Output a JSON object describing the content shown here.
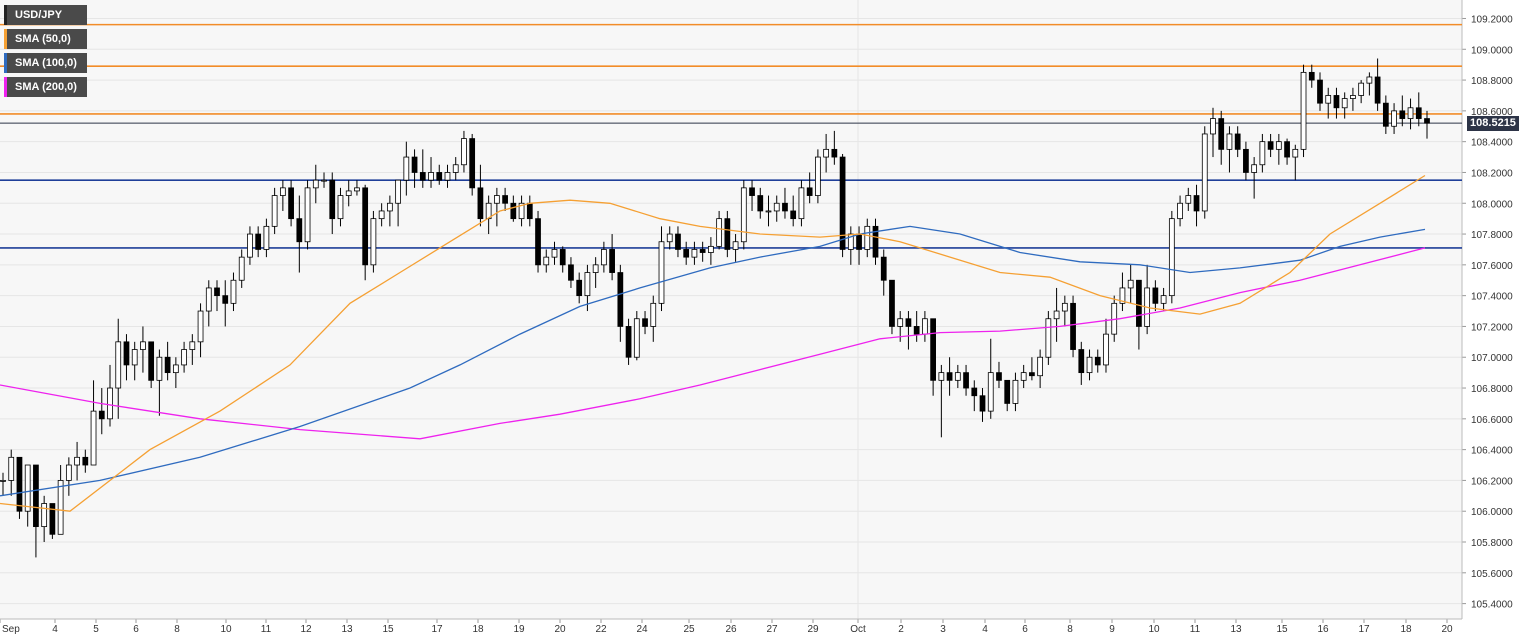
{
  "colors": {
    "background": "#f7f7f7",
    "grid": "#e6e6e6",
    "candle_up_fill": "#ffffff",
    "candle_down_fill": "#000000",
    "candle_wick": "#000000",
    "resistance": "#f28c28",
    "support": "#1f3f99",
    "price_line": "#2d3447",
    "sma50": "#f5a033",
    "sma100": "#2f6bbf",
    "sma200": "#ee22ee"
  },
  "legend": [
    {
      "label": "USD/JPY",
      "color": "#222222"
    },
    {
      "label": "SMA (50,0)",
      "color": "#f5a033"
    },
    {
      "label": "SMA (100,0)",
      "color": "#2f6bbf"
    },
    {
      "label": "SMA (200,0)",
      "color": "#ee22ee"
    }
  ],
  "last_price_label": "108.5215",
  "chart_data": {
    "type": "candlestick",
    "pair": "USD/JPY",
    "ylim": [
      105.3,
      109.32
    ],
    "y_ticks": [
      "105.4000",
      "105.6000",
      "105.8000",
      "106.0000",
      "106.2000",
      "106.4000",
      "106.6000",
      "106.8000",
      "107.0000",
      "107.2000",
      "107.4000",
      "107.6000",
      "107.8000",
      "108.0000",
      "108.2000",
      "108.4000",
      "108.6000",
      "108.8000",
      "109.0000",
      "109.2000"
    ],
    "x_ticks": [
      "Sep",
      "4",
      "5",
      "6",
      "8",
      "10",
      "11",
      "12",
      "13",
      "15",
      "17",
      "18",
      "19",
      "20",
      "22",
      "24",
      "25",
      "26",
      "27",
      "29",
      "Oct",
      "2",
      "3",
      "4",
      "6",
      "8",
      "9",
      "10",
      "11",
      "13",
      "15",
      "16",
      "17",
      "18",
      "20"
    ],
    "horizontal_levels": {
      "resistance": [
        109.16,
        108.89,
        108.58
      ],
      "support": [
        108.15,
        107.71
      ],
      "last_price": 108.52
    },
    "candles": [
      [
        106.2,
        106.25,
        106.1,
        106.2
      ],
      [
        106.2,
        106.4,
        106.1,
        106.35
      ],
      [
        106.35,
        106.35,
        105.95,
        106.0
      ],
      [
        106.0,
        106.3,
        105.9,
        106.3
      ],
      [
        106.3,
        106.3,
        105.7,
        105.9
      ],
      [
        105.9,
        106.1,
        105.8,
        106.05
      ],
      [
        106.05,
        106.05,
        105.82,
        105.85
      ],
      [
        105.85,
        106.3,
        105.85,
        106.2
      ],
      [
        106.2,
        106.35,
        106.1,
        106.3
      ],
      [
        106.3,
        106.45,
        106.2,
        106.35
      ],
      [
        106.35,
        106.4,
        106.25,
        106.3
      ],
      [
        106.3,
        106.85,
        106.3,
        106.65
      ],
      [
        106.65,
        106.8,
        106.5,
        106.6
      ],
      [
        106.6,
        106.95,
        106.55,
        106.8
      ],
      [
        106.8,
        107.25,
        106.6,
        107.1
      ],
      [
        107.1,
        107.15,
        106.85,
        106.95
      ],
      [
        106.95,
        107.1,
        106.85,
        107.05
      ],
      [
        107.05,
        107.2,
        106.9,
        107.1
      ],
      [
        107.1,
        107.1,
        106.8,
        106.85
      ],
      [
        106.85,
        107.05,
        106.62,
        107.0
      ],
      [
        107.0,
        107.1,
        106.85,
        106.9
      ],
      [
        106.9,
        107.0,
        106.8,
        106.95
      ],
      [
        106.95,
        107.1,
        106.9,
        107.05
      ],
      [
        107.05,
        107.15,
        106.95,
        107.1
      ],
      [
        107.1,
        107.35,
        107.0,
        107.3
      ],
      [
        107.3,
        107.5,
        107.2,
        107.45
      ],
      [
        107.45,
        107.5,
        107.3,
        107.4
      ],
      [
        107.4,
        107.5,
        107.2,
        107.35
      ],
      [
        107.35,
        107.55,
        107.3,
        107.5
      ],
      [
        107.5,
        107.7,
        107.45,
        107.65
      ],
      [
        107.65,
        107.85,
        107.6,
        107.8
      ],
      [
        107.8,
        107.85,
        107.65,
        107.7
      ],
      [
        107.7,
        107.9,
        107.65,
        107.85
      ],
      [
        107.85,
        108.1,
        107.8,
        108.05
      ],
      [
        108.05,
        108.15,
        107.95,
        108.1
      ],
      [
        108.1,
        108.15,
        107.85,
        107.9
      ],
      [
        107.9,
        108.05,
        107.55,
        107.75
      ],
      [
        107.75,
        108.15,
        107.7,
        108.1
      ],
      [
        108.1,
        108.25,
        108.0,
        108.15
      ],
      [
        108.15,
        108.2,
        108.1,
        108.15
      ],
      [
        108.15,
        108.2,
        107.8,
        107.9
      ],
      [
        107.9,
        108.1,
        107.85,
        108.05
      ],
      [
        108.05,
        108.15,
        107.98,
        108.08
      ],
      [
        108.08,
        108.15,
        108.05,
        108.1
      ],
      [
        108.1,
        108.12,
        107.5,
        107.6
      ],
      [
        107.6,
        107.95,
        107.55,
        107.9
      ],
      [
        107.9,
        108.0,
        107.85,
        107.95
      ],
      [
        107.95,
        108.05,
        107.85,
        108.0
      ],
      [
        108.0,
        108.15,
        107.85,
        108.15
      ],
      [
        108.15,
        108.4,
        108.05,
        108.3
      ],
      [
        108.3,
        108.35,
        108.1,
        108.2
      ],
      [
        108.2,
        108.35,
        108.1,
        108.15
      ],
      [
        108.15,
        108.3,
        108.1,
        108.2
      ],
      [
        108.2,
        108.25,
        108.12,
        108.15
      ],
      [
        108.15,
        108.25,
        108.1,
        108.2
      ],
      [
        108.2,
        108.3,
        108.15,
        108.25
      ],
      [
        108.25,
        108.47,
        108.2,
        108.42
      ],
      [
        108.42,
        108.45,
        108.05,
        108.1
      ],
      [
        108.1,
        108.25,
        107.85,
        107.9
      ],
      [
        107.9,
        108.05,
        107.8,
        108.0
      ],
      [
        108.0,
        108.1,
        107.85,
        108.05
      ],
      [
        108.05,
        108.1,
        107.95,
        108.0
      ],
      [
        108.0,
        108.05,
        107.88,
        107.9
      ],
      [
        107.9,
        108.05,
        107.85,
        108.0
      ],
      [
        108.0,
        108.05,
        107.85,
        107.9
      ],
      [
        107.9,
        107.95,
        107.55,
        107.6
      ],
      [
        107.6,
        107.7,
        107.55,
        107.65
      ],
      [
        107.65,
        107.75,
        107.6,
        107.7
      ],
      [
        107.7,
        107.72,
        107.55,
        107.6
      ],
      [
        107.6,
        107.65,
        107.45,
        107.5
      ],
      [
        107.5,
        107.55,
        107.35,
        107.4
      ],
      [
        107.4,
        107.6,
        107.3,
        107.55
      ],
      [
        107.55,
        107.65,
        107.45,
        107.6
      ],
      [
        107.6,
        107.75,
        107.55,
        107.7
      ],
      [
        107.7,
        107.8,
        107.5,
        107.55
      ],
      [
        107.55,
        107.6,
        107.1,
        107.2
      ],
      [
        107.2,
        107.25,
        106.95,
        107.0
      ],
      [
        107.0,
        107.3,
        106.98,
        107.25
      ],
      [
        107.25,
        107.3,
        107.15,
        107.2
      ],
      [
        107.2,
        107.4,
        107.1,
        107.35
      ],
      [
        107.35,
        107.85,
        107.3,
        107.75
      ],
      [
        107.75,
        107.85,
        107.7,
        107.8
      ],
      [
        107.8,
        107.85,
        107.65,
        107.7
      ],
      [
        107.7,
        107.75,
        107.6,
        107.65
      ],
      [
        107.65,
        107.75,
        107.6,
        107.7
      ],
      [
        107.7,
        107.75,
        107.62,
        107.68
      ],
      [
        107.68,
        107.78,
        107.6,
        107.72
      ],
      [
        107.72,
        107.95,
        107.7,
        107.9
      ],
      [
        107.9,
        107.95,
        107.65,
        107.7
      ],
      [
        107.7,
        107.8,
        107.62,
        107.75
      ],
      [
        107.75,
        108.15,
        107.7,
        108.1
      ],
      [
        108.1,
        108.15,
        107.95,
        108.05
      ],
      [
        108.05,
        108.1,
        107.9,
        107.95
      ],
      [
        107.95,
        108.05,
        107.85,
        107.95
      ],
      [
        107.95,
        108.05,
        107.88,
        108.0
      ],
      [
        108.0,
        108.1,
        107.9,
        107.95
      ],
      [
        107.95,
        108.05,
        107.85,
        107.9
      ],
      [
        107.9,
        108.15,
        107.85,
        108.1
      ],
      [
        108.1,
        108.2,
        108.0,
        108.05
      ],
      [
        108.05,
        108.35,
        108.0,
        108.3
      ],
      [
        108.3,
        108.45,
        108.2,
        108.35
      ],
      [
        108.35,
        108.47,
        108.25,
        108.3
      ],
      [
        108.3,
        108.32,
        107.65,
        107.7
      ],
      [
        107.7,
        107.85,
        107.6,
        107.8
      ],
      [
        107.8,
        107.85,
        107.6,
        107.7
      ],
      [
        107.7,
        107.9,
        107.65,
        107.85
      ],
      [
        107.85,
        107.9,
        107.6,
        107.65
      ],
      [
        107.65,
        107.7,
        107.4,
        107.5
      ],
      [
        107.5,
        107.5,
        107.15,
        107.2
      ],
      [
        107.2,
        107.3,
        107.1,
        107.25
      ],
      [
        107.25,
        107.3,
        107.05,
        107.2
      ],
      [
        107.2,
        107.3,
        107.1,
        107.15
      ],
      [
        107.15,
        107.3,
        107.1,
        107.25
      ],
      [
        107.25,
        107.25,
        106.75,
        106.85
      ],
      [
        106.85,
        106.95,
        106.48,
        106.9
      ],
      [
        106.9,
        107.0,
        106.75,
        106.85
      ],
      [
        106.85,
        106.95,
        106.8,
        106.9
      ],
      [
        106.9,
        106.95,
        106.75,
        106.8
      ],
      [
        106.8,
        106.85,
        106.65,
        106.75
      ],
      [
        106.75,
        106.8,
        106.58,
        106.65
      ],
      [
        106.65,
        107.12,
        106.6,
        106.9
      ],
      [
        106.9,
        106.97,
        106.8,
        106.85
      ],
      [
        106.85,
        106.85,
        106.65,
        106.7
      ],
      [
        106.7,
        106.9,
        106.65,
        106.85
      ],
      [
        106.85,
        106.95,
        106.8,
        106.9
      ],
      [
        106.9,
        107.0,
        106.85,
        106.88
      ],
      [
        106.88,
        107.05,
        106.8,
        107.0
      ],
      [
        107.0,
        107.3,
        106.95,
        107.25
      ],
      [
        107.25,
        107.45,
        107.1,
        107.3
      ],
      [
        107.3,
        107.4,
        107.2,
        107.35
      ],
      [
        107.35,
        107.4,
        107.0,
        107.05
      ],
      [
        107.05,
        107.1,
        106.82,
        106.9
      ],
      [
        106.9,
        107.05,
        106.85,
        107.0
      ],
      [
        107.0,
        107.05,
        106.9,
        106.95
      ],
      [
        106.95,
        107.25,
        106.9,
        107.15
      ],
      [
        107.15,
        107.4,
        107.1,
        107.35
      ],
      [
        107.35,
        107.55,
        107.3,
        107.45
      ],
      [
        107.45,
        107.6,
        107.35,
        107.5
      ],
      [
        107.5,
        107.5,
        107.05,
        107.2
      ],
      [
        107.2,
        107.6,
        107.15,
        107.45
      ],
      [
        107.45,
        107.5,
        107.3,
        107.35
      ],
      [
        107.35,
        107.45,
        107.3,
        107.4
      ],
      [
        107.4,
        107.95,
        107.35,
        107.9
      ],
      [
        107.9,
        108.05,
        107.85,
        108.0
      ],
      [
        108.0,
        108.1,
        107.95,
        108.05
      ],
      [
        108.05,
        108.12,
        107.85,
        107.95
      ],
      [
        107.95,
        108.5,
        107.9,
        108.45
      ],
      [
        108.45,
        108.62,
        108.3,
        108.55
      ],
      [
        108.55,
        108.6,
        108.25,
        108.35
      ],
      [
        108.35,
        108.5,
        108.2,
        108.45
      ],
      [
        108.45,
        108.5,
        108.3,
        108.35
      ],
      [
        108.35,
        108.4,
        108.15,
        108.2
      ],
      [
        108.2,
        108.3,
        108.03,
        108.25
      ],
      [
        108.25,
        108.45,
        108.2,
        108.4
      ],
      [
        108.4,
        108.45,
        108.3,
        108.35
      ],
      [
        108.35,
        108.45,
        108.25,
        108.4
      ],
      [
        108.4,
        108.42,
        108.25,
        108.3
      ],
      [
        108.3,
        108.38,
        108.15,
        108.35
      ],
      [
        108.35,
        108.9,
        108.3,
        108.85
      ],
      [
        108.85,
        108.9,
        108.75,
        108.8
      ],
      [
        108.8,
        108.85,
        108.6,
        108.65
      ],
      [
        108.65,
        108.75,
        108.55,
        108.7
      ],
      [
        108.7,
        108.75,
        108.55,
        108.62
      ],
      [
        108.62,
        108.72,
        108.55,
        108.68
      ],
      [
        108.68,
        108.75,
        108.6,
        108.7
      ],
      [
        108.7,
        108.8,
        108.65,
        108.78
      ],
      [
        108.78,
        108.85,
        108.7,
        108.82
      ],
      [
        108.82,
        108.94,
        108.6,
        108.65
      ],
      [
        108.65,
        108.7,
        108.45,
        108.5
      ],
      [
        108.5,
        108.65,
        108.45,
        108.6
      ],
      [
        108.6,
        108.7,
        108.5,
        108.55
      ],
      [
        108.55,
        108.68,
        108.48,
        108.62
      ],
      [
        108.62,
        108.72,
        108.5,
        108.55
      ],
      [
        108.55,
        108.6,
        108.42,
        108.52
      ]
    ],
    "sma50": [
      [
        0,
        106.05
      ],
      [
        70,
        106.0
      ],
      [
        150,
        106.4
      ],
      [
        220,
        106.65
      ],
      [
        290,
        106.95
      ],
      [
        350,
        107.35
      ],
      [
        400,
        107.55
      ],
      [
        450,
        107.75
      ],
      [
        500,
        107.95
      ],
      [
        530,
        108.0
      ],
      [
        570,
        108.02
      ],
      [
        610,
        108.0
      ],
      [
        660,
        107.9
      ],
      [
        700,
        107.85
      ],
      [
        760,
        107.8
      ],
      [
        820,
        107.78
      ],
      [
        860,
        107.8
      ],
      [
        900,
        107.75
      ],
      [
        950,
        107.65
      ],
      [
        1000,
        107.55
      ],
      [
        1050,
        107.52
      ],
      [
        1100,
        107.4
      ],
      [
        1150,
        107.32
      ],
      [
        1200,
        107.28
      ],
      [
        1240,
        107.35
      ],
      [
        1290,
        107.55
      ],
      [
        1330,
        107.8
      ],
      [
        1380,
        108.0
      ],
      [
        1425,
        108.18
      ]
    ],
    "sma100": [
      [
        0,
        106.1
      ],
      [
        100,
        106.2
      ],
      [
        200,
        106.35
      ],
      [
        300,
        106.55
      ],
      [
        410,
        106.8
      ],
      [
        460,
        106.95
      ],
      [
        520,
        107.15
      ],
      [
        580,
        107.33
      ],
      [
        640,
        107.45
      ],
      [
        710,
        107.58
      ],
      [
        760,
        107.65
      ],
      [
        820,
        107.72
      ],
      [
        860,
        107.8
      ],
      [
        910,
        107.85
      ],
      [
        960,
        107.8
      ],
      [
        1020,
        107.68
      ],
      [
        1080,
        107.62
      ],
      [
        1140,
        107.6
      ],
      [
        1190,
        107.55
      ],
      [
        1240,
        107.58
      ],
      [
        1300,
        107.63
      ],
      [
        1340,
        107.72
      ],
      [
        1380,
        107.78
      ],
      [
        1425,
        107.83
      ]
    ],
    "sma200": [
      [
        0,
        106.82
      ],
      [
        100,
        106.7
      ],
      [
        200,
        106.6
      ],
      [
        300,
        106.53
      ],
      [
        420,
        106.47
      ],
      [
        500,
        106.57
      ],
      [
        560,
        106.63
      ],
      [
        640,
        106.73
      ],
      [
        700,
        106.82
      ],
      [
        760,
        106.92
      ],
      [
        820,
        107.02
      ],
      [
        880,
        107.12
      ],
      [
        940,
        107.16
      ],
      [
        1000,
        107.17
      ],
      [
        1060,
        107.2
      ],
      [
        1120,
        107.25
      ],
      [
        1180,
        107.32
      ],
      [
        1240,
        107.42
      ],
      [
        1300,
        107.5
      ],
      [
        1360,
        107.6
      ],
      [
        1425,
        107.71
      ]
    ]
  }
}
